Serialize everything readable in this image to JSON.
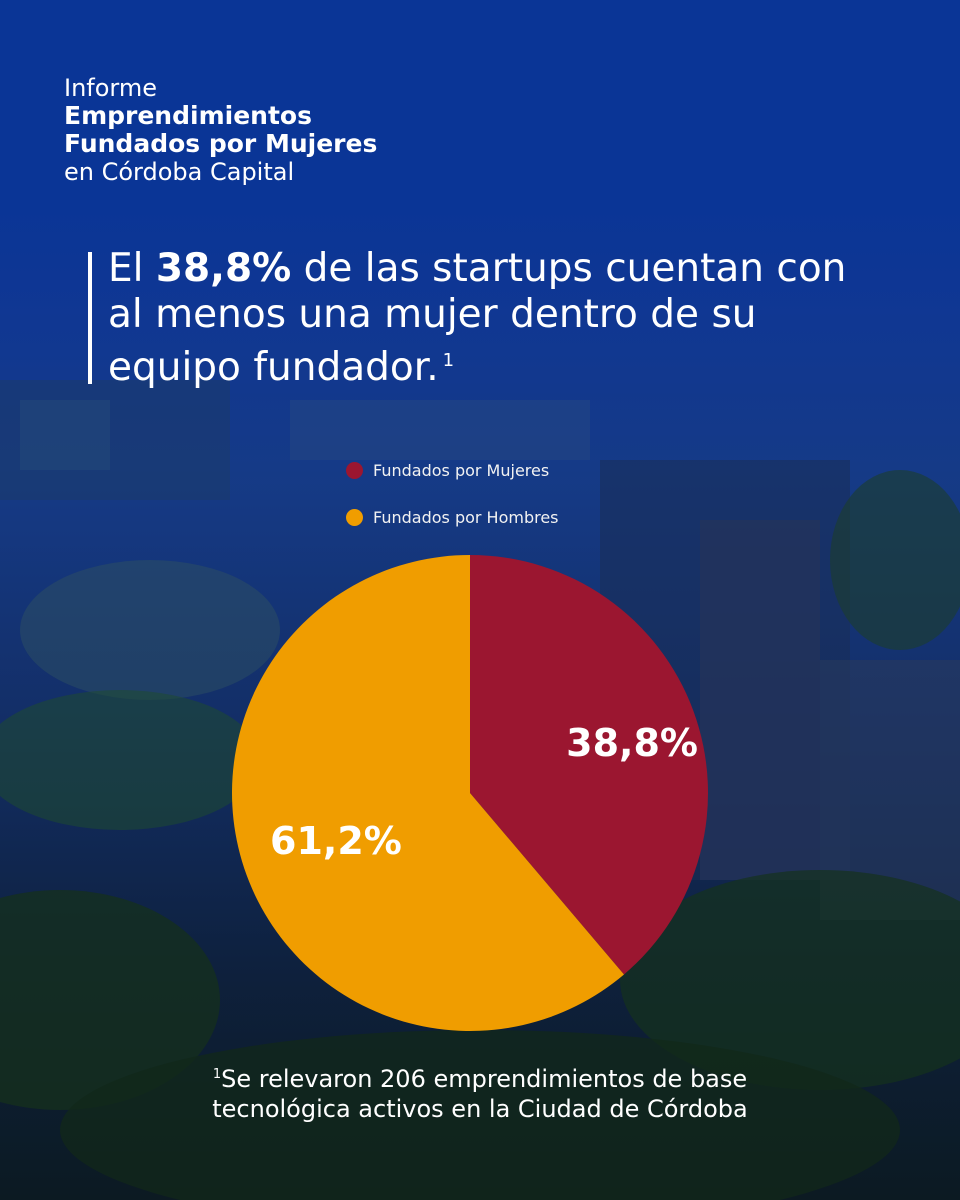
{
  "header": {
    "line1": "Informe",
    "line2": "Emprendimientos",
    "line3": "Fundados por Mujeres",
    "line4": "en Córdoba Capital"
  },
  "headline": {
    "prefix": "El ",
    "highlight": "38,8%",
    "rest_line1": " de las startups cuentan con",
    "line2": "al menos una mujer dentro de su",
    "line3": "equipo fundador.",
    "sup": "1"
  },
  "colors": {
    "women": "#9b1630",
    "men": "#f09d00",
    "background": "#0a3596"
  },
  "chart_data": {
    "type": "pie",
    "title": "",
    "legend_position": "top",
    "slices": [
      {
        "name": "Fundados por Mujeres",
        "value": 38.8,
        "label": "38,8%",
        "color": "#9b1630"
      },
      {
        "name": "Fundados por Hombres",
        "value": 61.2,
        "label": "61,2%",
        "color": "#f09d00"
      }
    ]
  },
  "footnote": {
    "sup": "1",
    "line1": "Se relevaron 206 emprendimientos de base",
    "line2": "tecnológica activos en la Ciudad de Córdoba"
  }
}
